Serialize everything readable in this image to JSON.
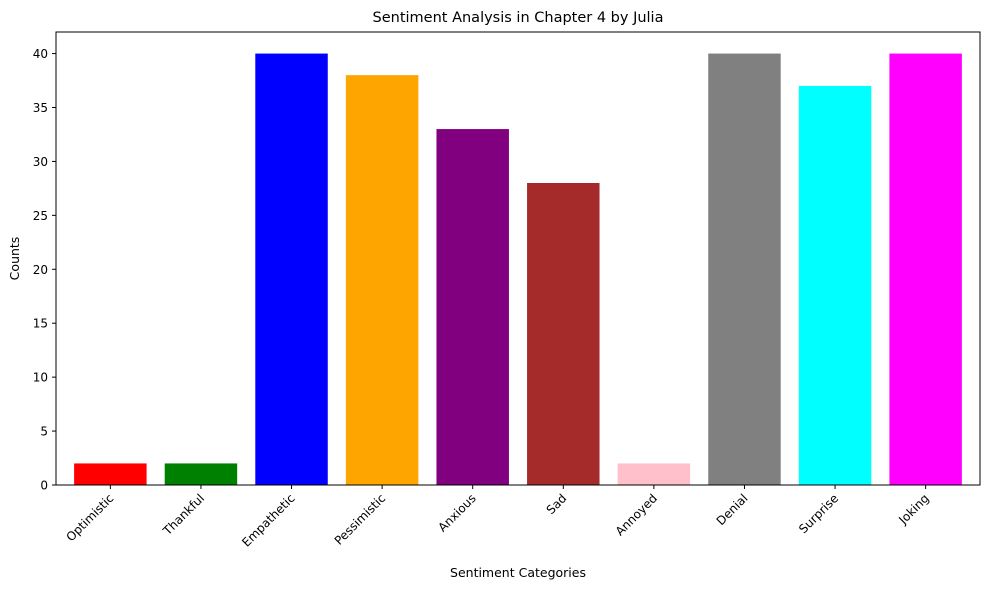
{
  "chart_data": {
    "type": "bar",
    "title": "Sentiment Analysis in Chapter 4 by Julia",
    "xlabel": "Sentiment Categories",
    "ylabel": "Counts",
    "categories": [
      "Optimistic",
      "Thankful",
      "Empathetic",
      "Pessimistic",
      "Anxious",
      "Sad",
      "Annoyed",
      "Denial",
      "Surprise",
      "Joking"
    ],
    "values": [
      2,
      2,
      40,
      38,
      33,
      28,
      2,
      40,
      37,
      40
    ],
    "colors": [
      "#ff0000",
      "#008000",
      "#0000ff",
      "#ffa500",
      "#800080",
      "#a52a2a",
      "#ffc0cb",
      "#808080",
      "#00ffff",
      "#ff00ff"
    ],
    "ylim": [
      0,
      42
    ],
    "yticks": [
      0,
      5,
      10,
      15,
      20,
      25,
      30,
      35,
      40
    ],
    "grid": false,
    "legend": false
  }
}
